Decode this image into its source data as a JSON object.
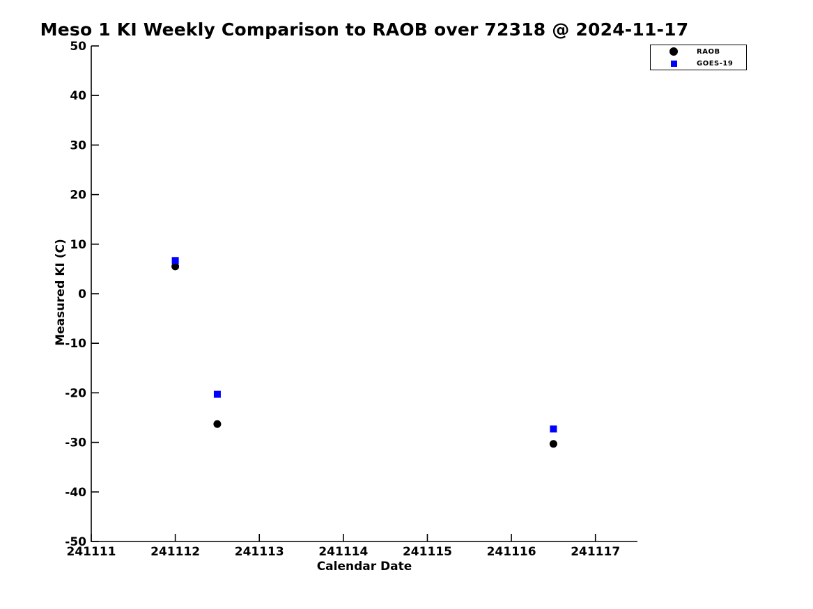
{
  "chart_data": {
    "type": "scatter",
    "title": "Meso 1 KI Weekly Comparison to RAOB over 72318 @ 2024-11-17",
    "xlabel": "Calendar Date",
    "ylabel": "Measured KI (C)",
    "xlim": [
      241111,
      241117.5
    ],
    "ylim": [
      -50,
      50
    ],
    "xticks": [
      241111,
      241112,
      241113,
      241114,
      241115,
      241116,
      241117
    ],
    "yticks": [
      -50,
      -40,
      -30,
      -20,
      -10,
      0,
      10,
      20,
      30,
      40,
      50
    ],
    "grid": false,
    "legend_position": "top-right",
    "axis_color": "#000000",
    "background_color": "#ffffff",
    "series": [
      {
        "name": "RAOB",
        "marker": "circle",
        "color": "#000000",
        "points": [
          [
            241112.0,
            5.5
          ],
          [
            241112.5,
            -26.3
          ],
          [
            241116.5,
            -30.3
          ]
        ]
      },
      {
        "name": "GOES-19",
        "marker": "square",
        "color": "#0000ff",
        "points": [
          [
            241112.0,
            6.7
          ],
          [
            241112.5,
            -20.3
          ],
          [
            241116.5,
            -27.3
          ]
        ]
      }
    ]
  }
}
